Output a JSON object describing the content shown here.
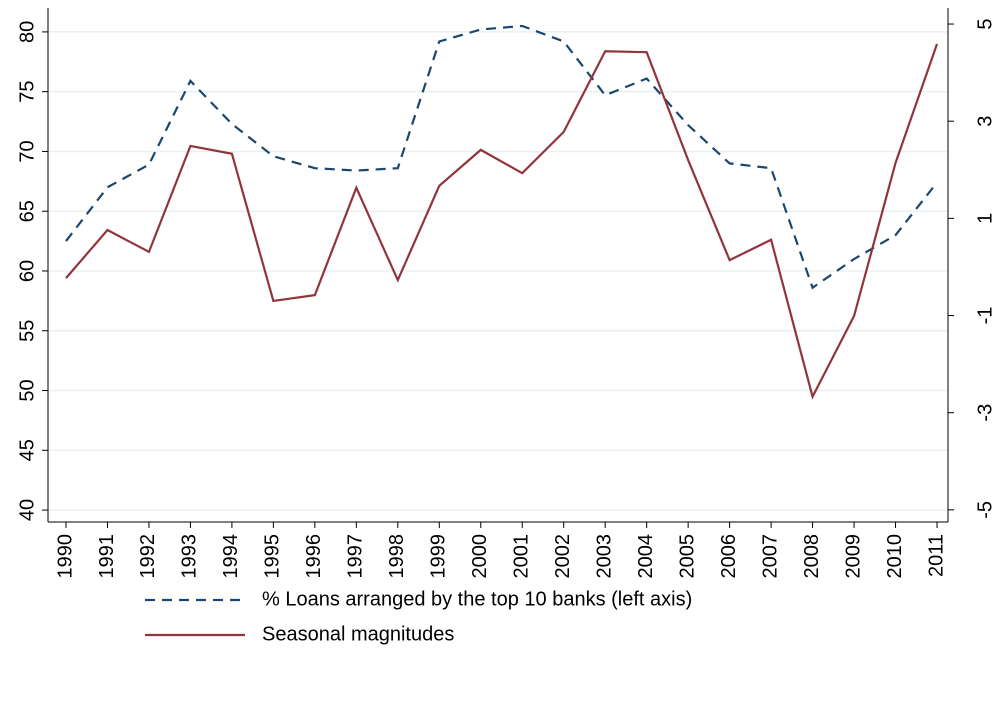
{
  "chart_data": {
    "type": "line",
    "categories": [
      "1990",
      "1991",
      "1992",
      "1993",
      "1994",
      "1995",
      "1996",
      "1997",
      "1998",
      "1999",
      "2000",
      "2001",
      "2002",
      "2003",
      "2004",
      "2005",
      "2006",
      "2007",
      "2008",
      "2009",
      "2010",
      "2011"
    ],
    "series": [
      {
        "name": "% Loans arranged by the top 10 banks (left axis)",
        "color": "#1a476f",
        "dash": true,
        "values": [
          62.5,
          67,
          68.9,
          75.9,
          72.3,
          69.6,
          68.6,
          68.4,
          68.6,
          79.2,
          80.2,
          80.5,
          79.2,
          74.7,
          76.1,
          72.2,
          69,
          68.6,
          58.6,
          61,
          63,
          67.4
        ]
      },
      {
        "name": "Seasonal magnitudes",
        "color": "#90353b",
        "dash": false,
        "axis": "y2",
        "values": [
          -0.23,
          0.76,
          0.31,
          2.49,
          2.33,
          -0.7,
          -0.58,
          1.63,
          -0.27,
          1.67,
          2.41,
          1.93,
          2.78,
          4.44,
          4.42,
          2.2,
          0.14,
          0.56,
          -2.67,
          -1.01,
          2.14,
          4.59
        ]
      }
    ],
    "ylim": [
      39,
      82
    ],
    "yticks": [
      40,
      45,
      50,
      55,
      60,
      65,
      70,
      75,
      80
    ],
    "y2lim": [
      -5.25,
      5.33
    ],
    "y2ticks": [
      -5,
      -3,
      -1,
      1,
      3,
      5
    ],
    "grid": true,
    "legend": "bottom"
  }
}
